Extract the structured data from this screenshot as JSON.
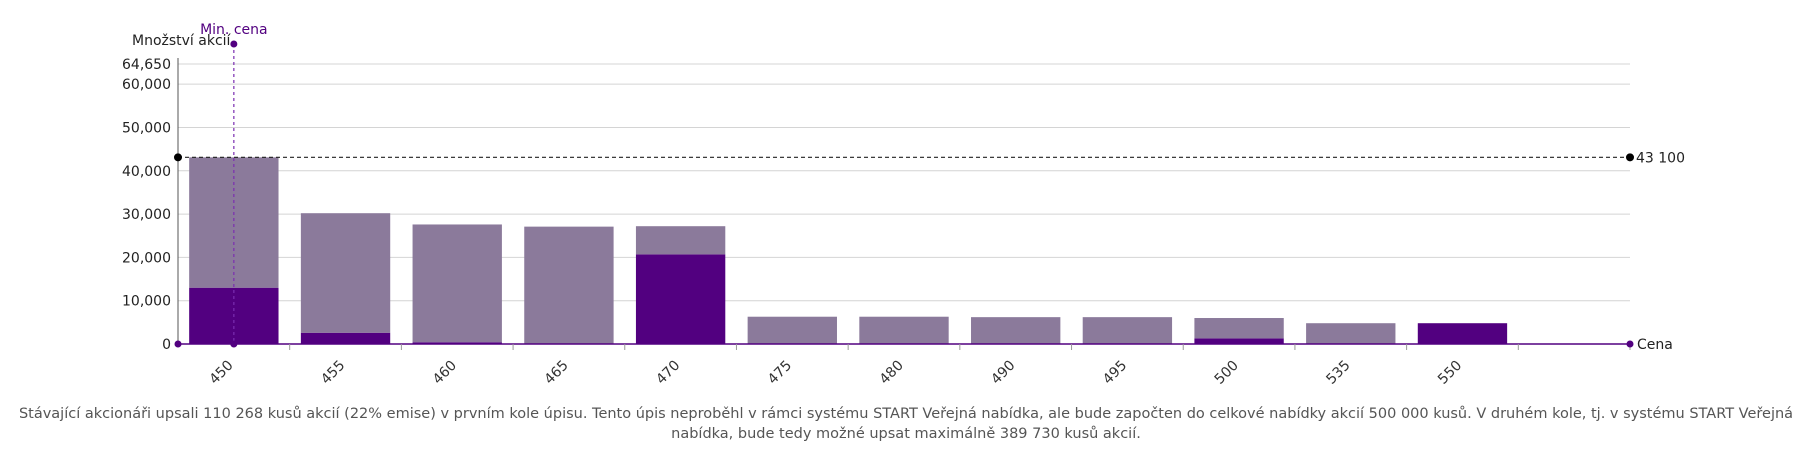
{
  "chart_data": {
    "type": "bar",
    "stacked": true,
    "ylabel": "Množství akcií",
    "xlabel": "Cena",
    "categories": [
      "450",
      "455",
      "460",
      "465",
      "470",
      "475",
      "480",
      "490",
      "495",
      "500",
      "535",
      "550",
      ""
    ],
    "series": [
      {
        "color": "#520080",
        "values": [
          13000,
          2600,
          400,
          100,
          20700,
          100,
          0,
          0,
          0,
          1300,
          0,
          4800,
          0
        ]
      },
      {
        "color": "#8b7a9b",
        "values": [
          30100,
          27600,
          27200,
          27000,
          6500,
          6200,
          6300,
          6200,
          6200,
          4700,
          4800,
          0,
          0
        ]
      }
    ],
    "y_ticks": [
      "0",
      "10,000",
      "20,000",
      "30,000",
      "40,000",
      "50,000",
      "60,000",
      "64,650"
    ],
    "y_tick_values": [
      0,
      10000,
      20000,
      30000,
      40000,
      50000,
      60000,
      64650
    ],
    "ylim": [
      0,
      64650
    ],
    "grid": true,
    "reference_line": {
      "value": 43100,
      "label": "43 100"
    },
    "min_price_marker": {
      "category": "450",
      "label": "Min. cena"
    }
  },
  "caption": "Stávající akcionáři upsali 110 268 kusů akcií (22% emise) v prvním kole úpisu. Tento úpis neproběhl v rámci systému START Veřejná nabídka, ale bude započten do celkové nabídky akcií 500 000 kusů. V druhém kole, tj. v systému START Veřejná nabídka, bude tedy možné upsat maximálně 389 730 kusů akcií."
}
